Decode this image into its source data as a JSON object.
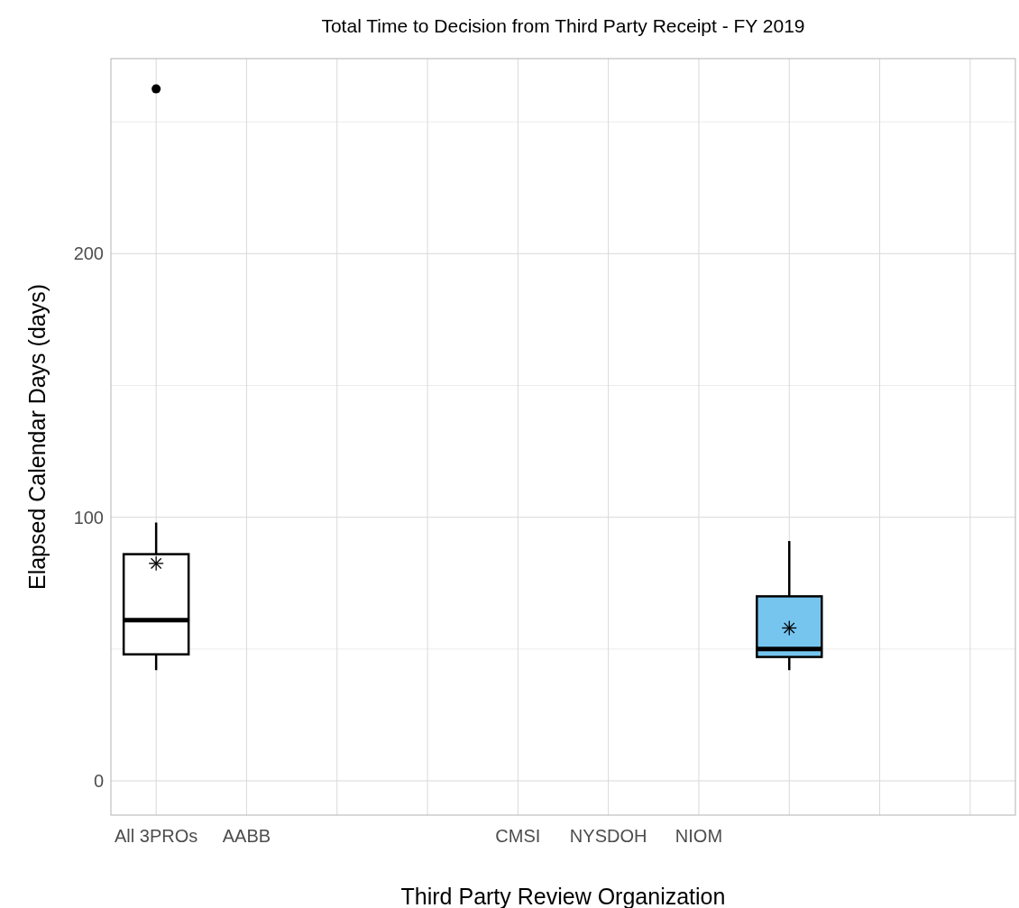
{
  "chart_data": {
    "type": "box",
    "title": "Total Time to Decision from Third Party Receipt - FY 2019",
    "xlabel": "Third Party Review Organization",
    "ylabel": "Elapsed Calendar Days (days)",
    "categories": [
      "All 3PROs",
      "AABB",
      null,
      null,
      "CMSI",
      "NYSDOH",
      "NIOM",
      null,
      null,
      null
    ],
    "boxes": [
      {
        "low": 42,
        "q1": 48,
        "median": 61,
        "q3": 86,
        "high": 98,
        "mean": 82.5,
        "outliers": [
          262.5
        ]
      },
      null,
      null,
      null,
      null,
      null,
      null,
      {
        "low": 42,
        "q1": 47,
        "median": 50,
        "q3": 70,
        "high": 91,
        "mean": 58
      },
      null,
      null
    ],
    "colors": [
      "#ffffff",
      null,
      null,
      null,
      null,
      null,
      null,
      "#75c5ef",
      null,
      null
    ],
    "ylim": [
      -13,
      274
    ],
    "yticks": [
      0,
      100,
      200,
      {
        "value": 50,
        "label": null
      },
      {
        "value": 150,
        "label": null
      },
      {
        "value": 250,
        "label": null
      }
    ],
    "grid": true,
    "marker": "star"
  }
}
